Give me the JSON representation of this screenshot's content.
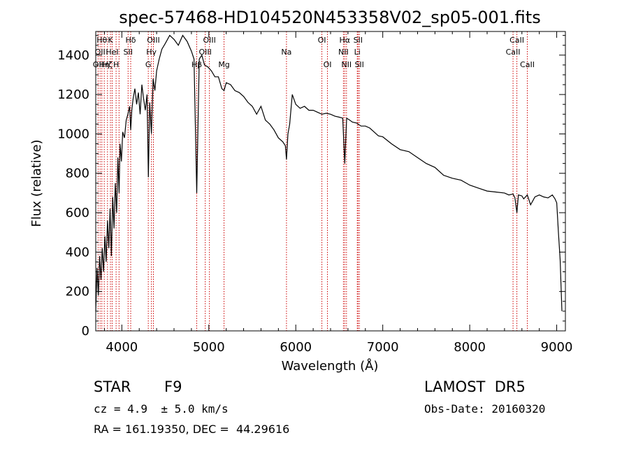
{
  "chart_data": {
    "type": "line",
    "title": "spec-57468-HD104520N453358V02_sp05-001.fits",
    "xlabel": "Wavelength (Å)",
    "ylabel": "Flux (relative)",
    "xlim": [
      3700,
      9100
    ],
    "ylim": [
      0,
      1520
    ],
    "xticks": [
      4000,
      5000,
      6000,
      7000,
      8000,
      9000
    ],
    "yticks": [
      0,
      200,
      400,
      600,
      800,
      1000,
      1200,
      1400
    ],
    "grid": false,
    "legend": "none",
    "line_color": "#000000",
    "marker_color": "#cc0000",
    "series": [
      {
        "x": [
          3700,
          3715,
          3730,
          3745,
          3760,
          3775,
          3790,
          3805,
          3820,
          3835,
          3850,
          3865,
          3880,
          3895,
          3910,
          3925,
          3940,
          3955,
          3968,
          3980,
          3995,
          4010,
          4030,
          4050,
          4070,
          4090,
          4102,
          4115,
          4130,
          4150,
          4170,
          4190,
          4210,
          4230,
          4250,
          4270,
          4290,
          4305,
          4320,
          4340,
          4360,
          4380,
          4400,
          4430,
          4460,
          4500,
          4550,
          4600,
          4650,
          4700,
          4750,
          4800,
          4830,
          4861,
          4890,
          4920,
          4950,
          4990,
          5030,
          5070,
          5110,
          5150,
          5175,
          5200,
          5250,
          5300,
          5350,
          5400,
          5450,
          5500,
          5550,
          5600,
          5650,
          5700,
          5750,
          5800,
          5850,
          5880,
          5893,
          5910,
          5930,
          5960,
          6000,
          6050,
          6100,
          6150,
          6200,
          6250,
          6300,
          6350,
          6400,
          6450,
          6500,
          6540,
          6563,
          6585,
          6620,
          6650,
          6700,
          6750,
          6800,
          6850,
          6900,
          6950,
          7000,
          7100,
          7200,
          7300,
          7400,
          7500,
          7600,
          7700,
          7800,
          7900,
          8000,
          8100,
          8200,
          8300,
          8400,
          8450,
          8498,
          8520,
          8542,
          8560,
          8600,
          8620,
          8662,
          8700,
          8750,
          8800,
          8850,
          8900,
          8950,
          8980,
          9000,
          9020,
          9040,
          9060
        ],
        "y": [
          100,
          320,
          180,
          380,
          260,
          420,
          300,
          480,
          350,
          560,
          420,
          620,
          380,
          680,
          520,
          750,
          600,
          880,
          700,
          950,
          860,
          1010,
          980,
          1070,
          1100,
          1140,
          1020,
          1120,
          1180,
          1230,
          1150,
          1210,
          1100,
          1250,
          1180,
          1120,
          1200,
          780,
          1160,
          1000,
          1280,
          1220,
          1320,
          1380,
          1430,
          1460,
          1500,
          1480,
          1450,
          1500,
          1470,
          1420,
          1380,
          700,
          1380,
          1400,
          1350,
          1340,
          1320,
          1290,
          1290,
          1230,
          1220,
          1260,
          1250,
          1220,
          1210,
          1190,
          1160,
          1140,
          1100,
          1140,
          1070,
          1050,
          1020,
          980,
          960,
          940,
          870,
          1000,
          1050,
          1200,
          1150,
          1130,
          1140,
          1120,
          1120,
          1110,
          1100,
          1105,
          1100,
          1090,
          1085,
          1080,
          850,
          1080,
          1070,
          1060,
          1055,
          1040,
          1040,
          1030,
          1010,
          990,
          985,
          950,
          920,
          910,
          880,
          850,
          830,
          790,
          775,
          765,
          740,
          725,
          710,
          705,
          700,
          690,
          695,
          675,
          600,
          690,
          685,
          670,
          690,
          640,
          680,
          690,
          680,
          675,
          690,
          670,
          650,
          500,
          360,
          100
        ]
      }
    ],
    "lines": [
      {
        "x": 3727,
        "labels": [
          "OII"
        ],
        "rows": [
          2
        ]
      },
      {
        "x": 3750,
        "labels": [
          "OII"
        ],
        "rows": [
          1
        ]
      },
      {
        "x": 3770,
        "labels": [
          "Hθ"
        ],
        "rows": [
          0
        ]
      },
      {
        "x": 3798,
        "labels": [
          "Hη"
        ],
        "rows": [
          2
        ]
      },
      {
        "x": 3835,
        "labels": [
          "Hζ"
        ],
        "rows": [
          2
        ]
      },
      {
        "x": 3869,
        "labels": [
          "K"
        ],
        "rows": [
          0
        ]
      },
      {
        "x": 3889,
        "labels": [
          "HeI"
        ],
        "rows": [
          1
        ]
      },
      {
        "x": 3934,
        "labels": [
          "H"
        ],
        "rows": [
          2
        ]
      },
      {
        "x": 3968,
        "labels": [],
        "rows": []
      },
      {
        "x": 4072,
        "labels": [
          "SII"
        ],
        "rows": [
          1
        ]
      },
      {
        "x": 4102,
        "labels": [
          "Hδ"
        ],
        "rows": [
          0
        ]
      },
      {
        "x": 4304,
        "labels": [
          "G"
        ],
        "rows": [
          2
        ]
      },
      {
        "x": 4340,
        "labels": [
          "Hγ"
        ],
        "rows": [
          1
        ]
      },
      {
        "x": 4363,
        "labels": [
          "OIII"
        ],
        "rows": [
          0
        ]
      },
      {
        "x": 4861,
        "labels": [
          "Hβ"
        ],
        "rows": [
          2
        ]
      },
      {
        "x": 4959,
        "labels": [
          "OIII"
        ],
        "rows": [
          1
        ]
      },
      {
        "x": 5007,
        "labels": [
          "OIII"
        ],
        "rows": [
          0
        ]
      },
      {
        "x": 5175,
        "labels": [
          "Mg"
        ],
        "rows": [
          2
        ]
      },
      {
        "x": 5893,
        "labels": [
          "Na"
        ],
        "rows": [
          1
        ]
      },
      {
        "x": 6300,
        "labels": [
          "OI"
        ],
        "rows": [
          0
        ]
      },
      {
        "x": 6364,
        "labels": [
          "OI"
        ],
        "rows": [
          2
        ]
      },
      {
        "x": 6548,
        "labels": [
          "NII"
        ],
        "rows": [
          1
        ]
      },
      {
        "x": 6563,
        "labels": [
          "Hα"
        ],
        "rows": [
          0
        ]
      },
      {
        "x": 6583,
        "labels": [
          "NII"
        ],
        "rows": [
          2
        ]
      },
      {
        "x": 6707,
        "labels": [
          "Li"
        ],
        "rows": [
          1
        ]
      },
      {
        "x": 6716,
        "labels": [
          "SII"
        ],
        "rows": [
          0
        ]
      },
      {
        "x": 6731,
        "labels": [
          "SII"
        ],
        "rows": [
          2
        ]
      },
      {
        "x": 8498,
        "labels": [
          "CaII"
        ],
        "rows": [
          1
        ]
      },
      {
        "x": 8542,
        "labels": [
          "CaII"
        ],
        "rows": [
          0
        ]
      },
      {
        "x": 8662,
        "labels": [
          "CaII"
        ],
        "rows": [
          2
        ]
      }
    ]
  },
  "info": {
    "class_label": "STAR",
    "subclass": "F9",
    "survey": "LAMOST  DR5",
    "cz": "cz = 4.9  ± 5.0 km/s",
    "obs_date": "Obs-Date: 20160320",
    "radec": "RA = 161.19350, DEC =  44.29616"
  }
}
